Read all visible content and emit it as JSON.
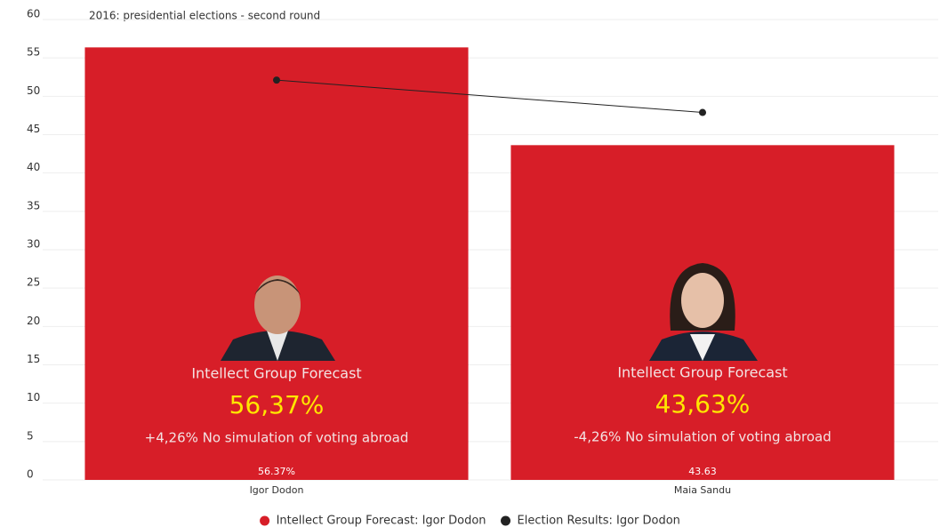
{
  "chart_data": {
    "type": "bar",
    "title": "2016: presidential elections - second round",
    "categories": [
      "Igor Dodon",
      "Maia Sandu"
    ],
    "series": [
      {
        "name": "Intellect Group Forecast: Igor Dodon",
        "type": "bar",
        "color": "#d71e28",
        "values": [
          56.37,
          43.63
        ],
        "value_labels": [
          "56.37%",
          "43.63"
        ]
      },
      {
        "name": "Election Results: Igor Dodon",
        "type": "line",
        "color": "#222222",
        "values": [
          52.11,
          47.89
        ]
      }
    ],
    "annotations": [
      {
        "label": "Intellect Group Forecast",
        "value": "56,37%",
        "note": "+4,26% No simulation of voting abroad"
      },
      {
        "label": "Intellect Group Forecast",
        "value": "43,63%",
        "note": "-4,26% No simulation of voting abroad"
      }
    ],
    "ylim": [
      0,
      60
    ],
    "yticks": [
      0,
      5,
      10,
      15,
      20,
      25,
      30,
      35,
      40,
      45,
      50,
      55,
      60
    ],
    "grid": true,
    "legend": "bottom"
  }
}
